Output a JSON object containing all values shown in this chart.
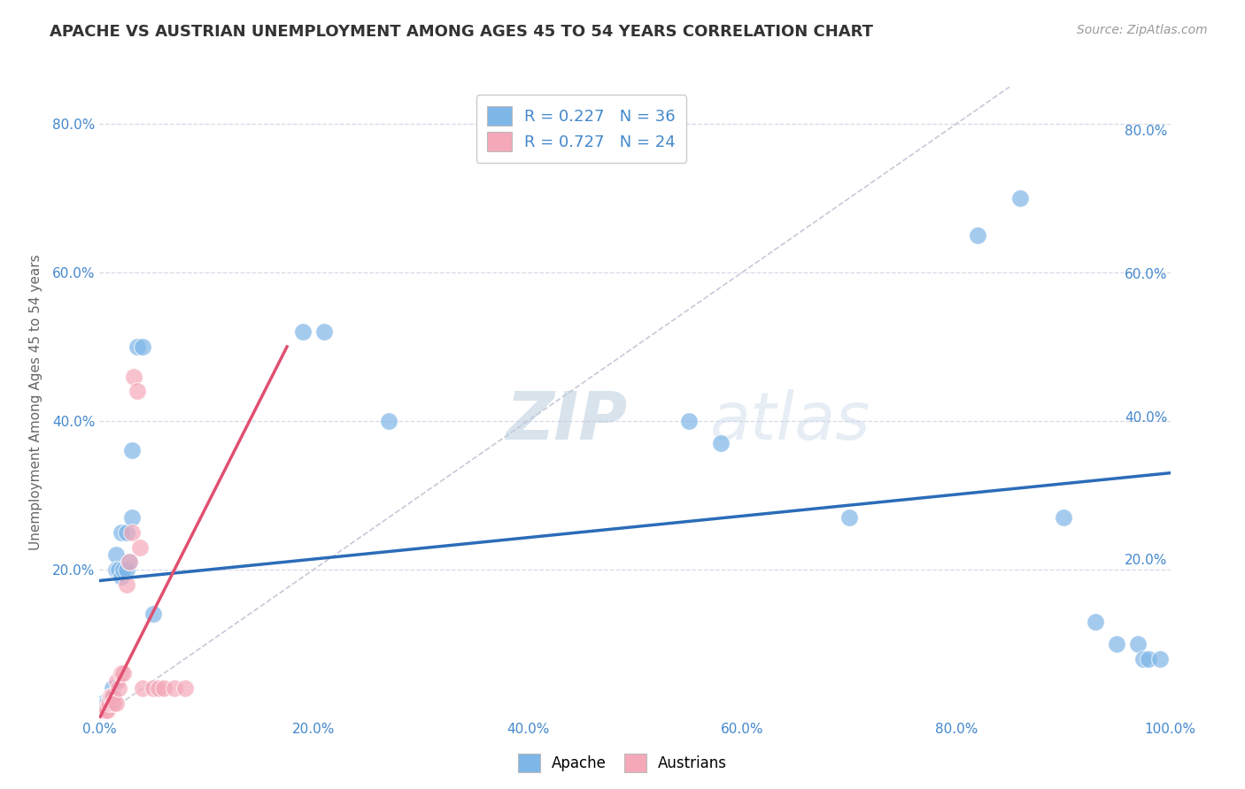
{
  "title": "APACHE VS AUSTRIAN UNEMPLOYMENT AMONG AGES 45 TO 54 YEARS CORRELATION CHART",
  "source": "Source: ZipAtlas.com",
  "ylabel": "Unemployment Among Ages 45 to 54 years",
  "xlim": [
    0,
    1.0
  ],
  "ylim": [
    0,
    0.85
  ],
  "xtick_vals": [
    0.0,
    0.2,
    0.4,
    0.6,
    0.8,
    1.0
  ],
  "ytick_vals": [
    0.0,
    0.2,
    0.4,
    0.6,
    0.8
  ],
  "ytick_labels": [
    "",
    "20.0%",
    "40.0%",
    "60.0%",
    "80.0%"
  ],
  "xtick_labels": [
    "0.0%",
    "20.0%",
    "40.0%",
    "60.0%",
    "80.0%",
    "100.0%"
  ],
  "apache_color": "#7EB6E8",
  "austrian_color": "#F4A8B8",
  "apache_line_color": "#2B6CB8",
  "austrian_line_color": "#E05070",
  "diag_line_color": "#C8C8D8",
  "background_color": "#FFFFFF",
  "grid_color": "#D8D8E8",
  "tick_color": "#4488CC",
  "apache_R": 0.227,
  "apache_N": 36,
  "austrian_R": 0.727,
  "austrian_N": 24,
  "apache_x": [
    0.003,
    0.006,
    0.007,
    0.009,
    0.01,
    0.012,
    0.013,
    0.015,
    0.015,
    0.018,
    0.02,
    0.022,
    0.025,
    0.028,
    0.03,
    0.035,
    0.04,
    0.05,
    0.02,
    0.025,
    0.03,
    0.19,
    0.21,
    0.27,
    0.55,
    0.58,
    0.7,
    0.82,
    0.86,
    0.9,
    0.93,
    0.95,
    0.97,
    0.975,
    0.98,
    0.99
  ],
  "apache_y": [
    0.02,
    0.02,
    0.02,
    0.02,
    0.02,
    0.04,
    0.03,
    0.22,
    0.2,
    0.2,
    0.19,
    0.2,
    0.2,
    0.21,
    0.36,
    0.5,
    0.5,
    0.14,
    0.25,
    0.25,
    0.27,
    0.52,
    0.52,
    0.4,
    0.4,
    0.37,
    0.27,
    0.65,
    0.7,
    0.27,
    0.13,
    0.1,
    0.1,
    0.08,
    0.08,
    0.08
  ],
  "austrian_x": [
    0.003,
    0.005,
    0.007,
    0.009,
    0.01,
    0.012,
    0.013,
    0.015,
    0.016,
    0.018,
    0.02,
    0.022,
    0.025,
    0.028,
    0.03,
    0.032,
    0.035,
    0.038,
    0.04,
    0.05,
    0.055,
    0.06,
    0.07,
    0.08
  ],
  "austrian_y": [
    0.01,
    0.01,
    0.01,
    0.02,
    0.03,
    0.03,
    0.02,
    0.02,
    0.05,
    0.04,
    0.06,
    0.06,
    0.18,
    0.21,
    0.25,
    0.46,
    0.44,
    0.23,
    0.04,
    0.04,
    0.04,
    0.04,
    0.04,
    0.04
  ],
  "apache_trendline_x": [
    0.0,
    1.0
  ],
  "apache_trendline_y": [
    0.185,
    0.33
  ],
  "austrian_trendline_x": [
    0.0,
    0.175
  ],
  "austrian_trendline_y": [
    0.0,
    0.5
  ]
}
